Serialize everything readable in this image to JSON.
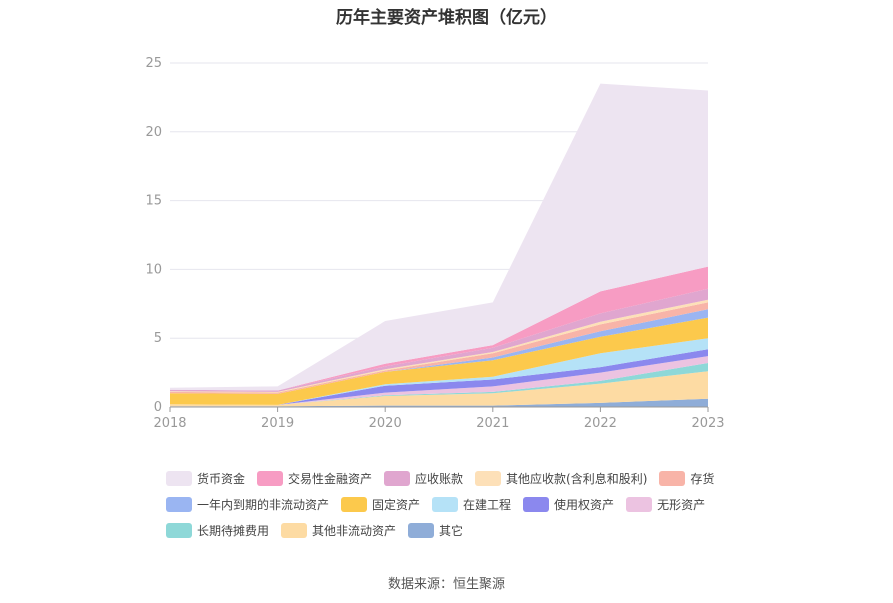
{
  "chart_data": {
    "type": "area",
    "title": "历年主要资产堆积图（亿元）",
    "categories": [
      "2018",
      "2019",
      "2020",
      "2021",
      "2022",
      "2023"
    ],
    "ylim": [
      0,
      25
    ],
    "yticks": [
      0,
      5,
      10,
      15,
      20,
      25
    ],
    "grid": true,
    "legend_position": "bottom",
    "series": [
      {
        "name": "其它",
        "color": "#8fadd8",
        "values": [
          0.05,
          0.05,
          0.1,
          0.1,
          0.3,
          0.6
        ]
      },
      {
        "name": "其他非流动资产",
        "color": "#fddba3",
        "values": [
          0.15,
          0.1,
          0.7,
          0.9,
          1.4,
          2.0
        ]
      },
      {
        "name": "长期待摊费用",
        "color": "#8ed8d8",
        "values": [
          0.0,
          0.0,
          0.05,
          0.1,
          0.2,
          0.6
        ]
      },
      {
        "name": "无形资产",
        "color": "#ecc3e1",
        "values": [
          0.0,
          0.0,
          0.2,
          0.4,
          0.6,
          0.5
        ]
      },
      {
        "name": "使用权资产",
        "color": "#8b88ee",
        "values": [
          0.0,
          0.0,
          0.5,
          0.5,
          0.4,
          0.5
        ]
      },
      {
        "name": "在建工程",
        "color": "#b5e2f7",
        "values": [
          0.0,
          0.0,
          0.1,
          0.2,
          1.0,
          0.8
        ]
      },
      {
        "name": "固定资产",
        "color": "#fcc94c",
        "values": [
          0.8,
          0.8,
          0.9,
          1.2,
          1.2,
          1.5
        ]
      },
      {
        "name": "一年内到期的非流动资产",
        "color": "#9ab5f2",
        "values": [
          0.0,
          0.0,
          0.0,
          0.2,
          0.4,
          0.6
        ]
      },
      {
        "name": "存货",
        "color": "#f8b4a8",
        "values": [
          0.1,
          0.1,
          0.1,
          0.3,
          0.5,
          0.5
        ]
      },
      {
        "name": "其他应收款(含利息和股利)",
        "color": "#fde0b8",
        "values": [
          0.05,
          0.05,
          0.1,
          0.1,
          0.2,
          0.2
        ]
      },
      {
        "name": "应收账款",
        "color": "#e0a6cf",
        "values": [
          0.1,
          0.1,
          0.2,
          0.3,
          0.6,
          0.8
        ]
      },
      {
        "name": "交易性金融资产",
        "color": "#f79cc3",
        "values": [
          0.0,
          0.0,
          0.2,
          0.2,
          1.6,
          1.6
        ]
      },
      {
        "name": "货币资金",
        "color": "#ede4f1",
        "values": [
          0.15,
          0.3,
          3.1,
          3.1,
          15.1,
          12.8
        ]
      }
    ],
    "legend_order": [
      "货币资金",
      "交易性金融资产",
      "应收账款",
      "其他应收款(含利息和股利)",
      "存货",
      "一年内到期的非流动资产",
      "固定资产",
      "在建工程",
      "使用权资产",
      "无形资产",
      "长期待摊费用",
      "其他非流动资产",
      "其它"
    ]
  },
  "source": "数据来源：恒生聚源"
}
